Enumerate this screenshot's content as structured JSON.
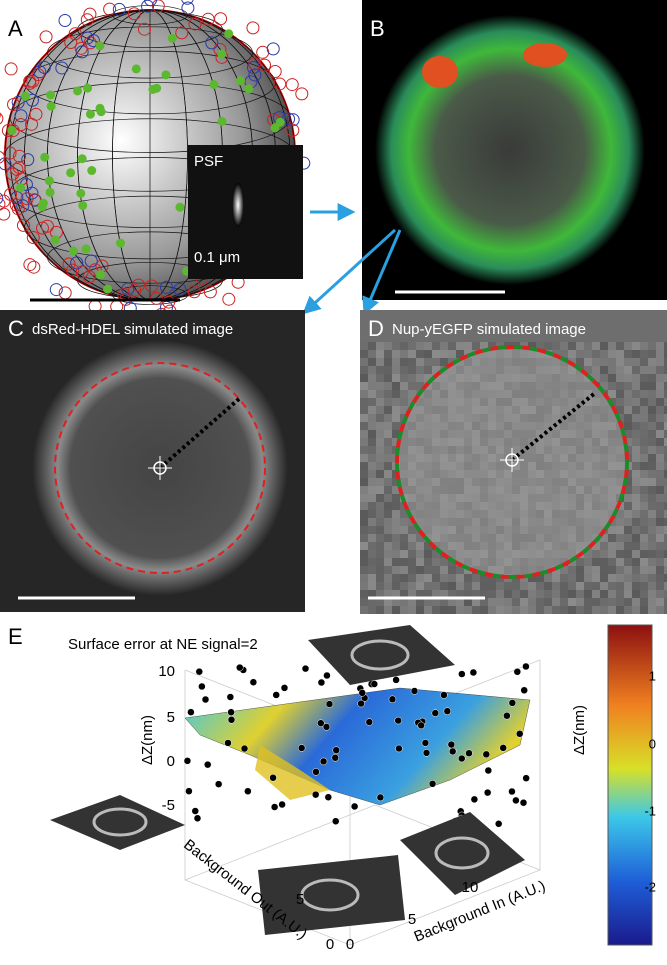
{
  "panels": {
    "a": {
      "label": "A",
      "inset_title": "PSF",
      "inset_scale": "0.1 μm"
    },
    "b": {
      "label": "B"
    },
    "c": {
      "label": "C",
      "title": "dsRed-HDEL simulated image"
    },
    "d": {
      "label": "D",
      "title": "Nup-yEGFP simulated image"
    },
    "e": {
      "label": "E",
      "title": "Surface error at NE signal=2",
      "z_axis": {
        "label": "ΔZ(nm)",
        "ticks": [
          10,
          5,
          0,
          -5
        ]
      },
      "x_axis": {
        "label": "Background Out (A.U.)",
        "ticks": [
          5,
          0
        ]
      },
      "y_axis": {
        "label": "Background In (A.U.)",
        "ticks": [
          0,
          5,
          10
        ]
      },
      "colorbar": {
        "label": "ΔZ(nm)",
        "ticks": [
          1,
          0,
          -1,
          -2
        ]
      }
    }
  }
}
